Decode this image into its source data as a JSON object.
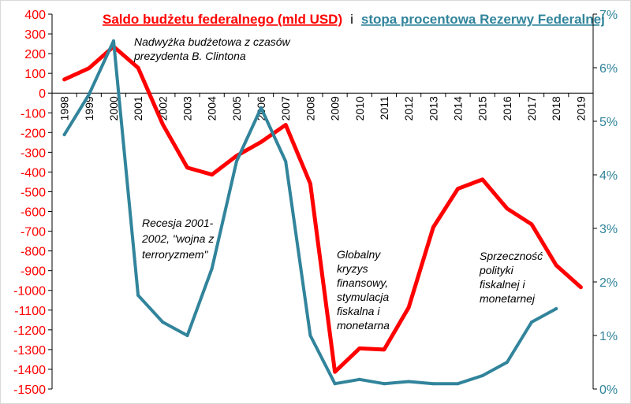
{
  "chart_data": {
    "type": "line",
    "title": {
      "part1": "Saldo budżetu federalnego (mld USD)",
      "separator": "i",
      "part2": "stopa procentowa Rezerwy Federalnej"
    },
    "x": [
      "1998",
      "1999",
      "2000",
      "2001",
      "2002",
      "2003",
      "2004",
      "2005",
      "2006",
      "2007",
      "2008",
      "2009",
      "2010",
      "2011",
      "2012",
      "2013",
      "2014",
      "2015",
      "2016",
      "2017",
      "2018",
      "2019"
    ],
    "series": [
      {
        "name": "Saldo budżetu federalnego (mld USD)",
        "axis": "left",
        "color": "#ff0000",
        "values": [
          69,
          126,
          236,
          128,
          -158,
          -378,
          -413,
          -318,
          -248,
          -161,
          -459,
          -1413,
          -1294,
          -1300,
          -1087,
          -680,
          -485,
          -438,
          -585,
          -665,
          -873,
          -984
        ]
      },
      {
        "name": "stopa procentowa Rezerwy Federalnej",
        "axis": "right",
        "color": "#31849b",
        "values": [
          4.75,
          5.5,
          6.5,
          1.75,
          1.25,
          1.0,
          2.25,
          4.25,
          5.25,
          4.25,
          1.0,
          0.1,
          0.18,
          0.1,
          0.14,
          0.1,
          0.1,
          0.25,
          0.5,
          1.25,
          1.5,
          null
        ]
      }
    ],
    "y_left": {
      "min": -1500,
      "max": 400,
      "step": 100
    },
    "y_right": {
      "min": 0,
      "max": 7,
      "step": 1,
      "suffix": "%"
    },
    "annotations": [
      {
        "id": "clinton",
        "lines": [
          "Nadwyżka budżetowa z czasów",
          "prezydenta B. Clintona"
        ]
      },
      {
        "id": "recession",
        "lines": [
          "Recesja 2001-",
          "2002, \"wojna z",
          "terroryzmem\""
        ]
      },
      {
        "id": "crisis",
        "lines": [
          "Globalny",
          "kryzys",
          "finansowy,",
          "stymulacja",
          "fiskalna i",
          "monetarna"
        ]
      },
      {
        "id": "contradiction",
        "lines": [
          "Sprzeczność",
          "polityki",
          "fiskalnej i",
          "monetarnej"
        ]
      }
    ]
  }
}
